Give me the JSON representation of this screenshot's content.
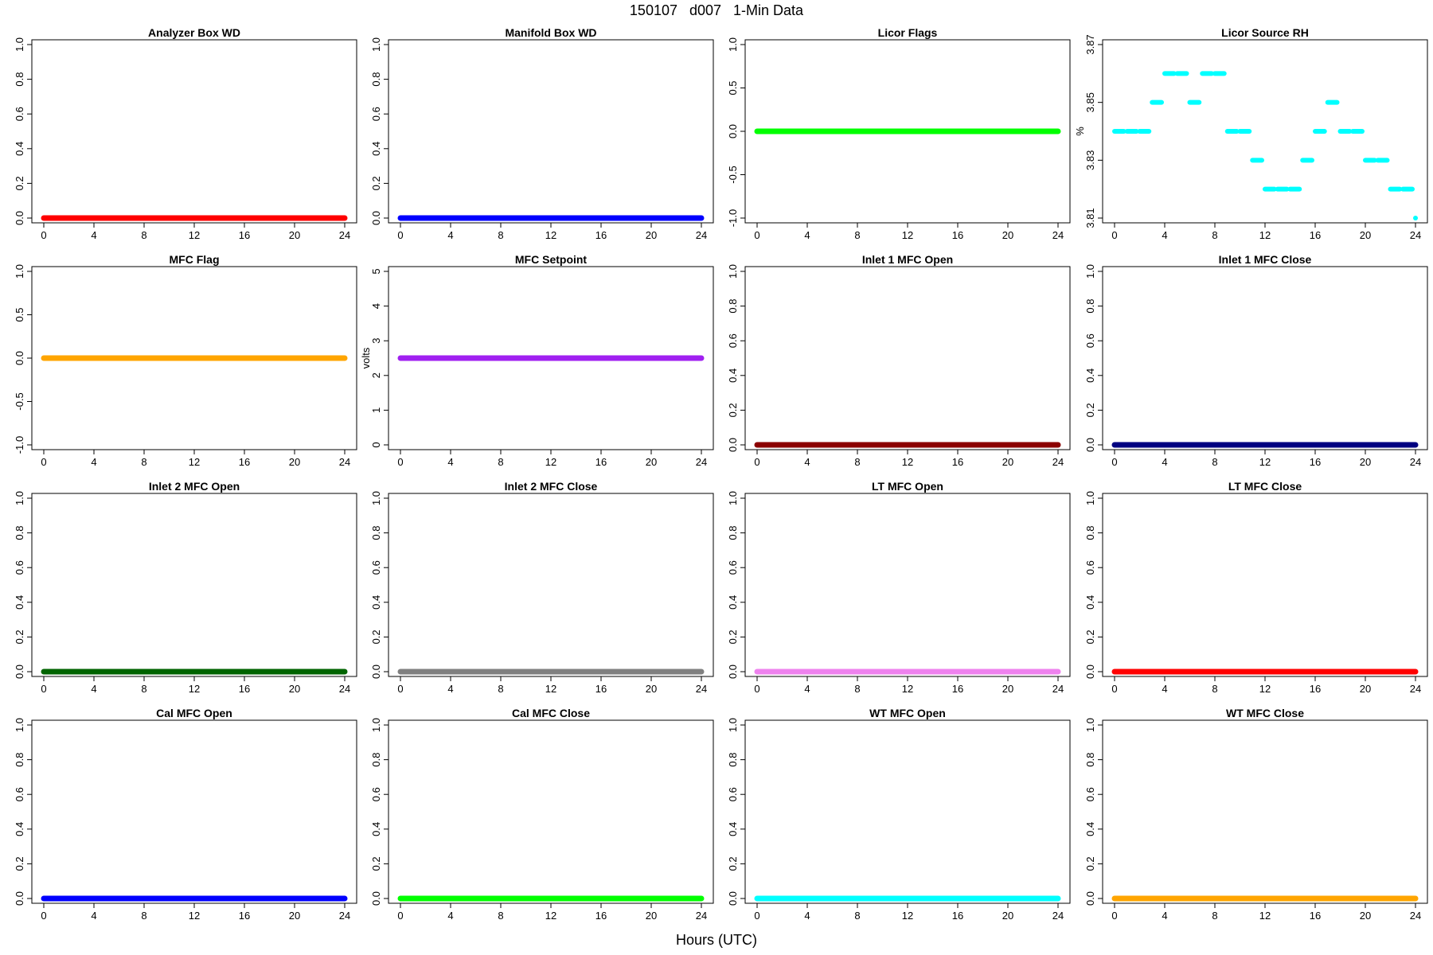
{
  "header": {
    "title": "150107   d007   1-Min Data",
    "xlabel": "Hours (UTC)"
  },
  "chart_data": [
    {
      "type": "scatter",
      "title": "Analyzer Box WD",
      "ylabel": "",
      "color": "#ff0000",
      "xlim": [
        0,
        24
      ],
      "ylim": [
        0,
        1
      ],
      "xticks": [
        "0",
        "4",
        "8",
        "12",
        "16",
        "20",
        "24"
      ],
      "yticks": [
        "0.0",
        "0.2",
        "0.4",
        "0.6",
        "0.8",
        "1.0"
      ],
      "series": [
        {
          "x": [
            0,
            24
          ],
          "y": [
            0,
            0
          ]
        }
      ]
    },
    {
      "type": "scatter",
      "title": "Manifold Box WD",
      "ylabel": "",
      "color": "#0000ff",
      "xlim": [
        0,
        24
      ],
      "ylim": [
        0,
        1
      ],
      "xticks": [
        "0",
        "4",
        "8",
        "12",
        "16",
        "20",
        "24"
      ],
      "yticks": [
        "0.0",
        "0.2",
        "0.4",
        "0.6",
        "0.8",
        "1.0"
      ],
      "series": [
        {
          "x": [
            0,
            24
          ],
          "y": [
            0,
            0
          ]
        }
      ]
    },
    {
      "type": "scatter",
      "title": "Licor Flags",
      "ylabel": "",
      "color": "#00ff00",
      "xlim": [
        0,
        24
      ],
      "ylim": [
        -1,
        1
      ],
      "xticks": [
        "0",
        "4",
        "8",
        "12",
        "16",
        "20",
        "24"
      ],
      "yticks": [
        "-1.0",
        "-0.5",
        "0.0",
        "0.5",
        "1.0"
      ],
      "series": [
        {
          "x": [
            0,
            24
          ],
          "y": [
            0,
            0
          ]
        }
      ]
    },
    {
      "type": "scatter",
      "title": "Licor Source RH",
      "ylabel": "%",
      "color": "#00ffff",
      "xlim": [
        0,
        24
      ],
      "ylim": [
        3.81,
        3.87
      ],
      "xticks": [
        "0",
        "4",
        "8",
        "12",
        "16",
        "20",
        "24"
      ],
      "yticks": [
        "3.81",
        "3.83",
        "3.85",
        "3.87"
      ],
      "series": [
        {
          "x": [
            0,
            1,
            2,
            3,
            4,
            5,
            6,
            7,
            8,
            9,
            10,
            11,
            12,
            13,
            14,
            15,
            16,
            17,
            18,
            19,
            20,
            21,
            22,
            23,
            24
          ],
          "y": [
            3.84,
            3.84,
            3.84,
            3.85,
            3.86,
            3.86,
            3.85,
            3.86,
            3.86,
            3.84,
            3.84,
            3.83,
            3.82,
            3.82,
            3.82,
            3.83,
            3.84,
            3.85,
            3.84,
            3.84,
            3.83,
            3.83,
            3.82,
            3.82,
            3.81
          ]
        }
      ]
    },
    {
      "type": "scatter",
      "title": "MFC Flag",
      "ylabel": "",
      "color": "#ffa500",
      "xlim": [
        0,
        24
      ],
      "ylim": [
        -1,
        1
      ],
      "xticks": [
        "0",
        "4",
        "8",
        "12",
        "16",
        "20",
        "24"
      ],
      "yticks": [
        "-1.0",
        "-0.5",
        "0.0",
        "0.5",
        "1.0"
      ],
      "series": [
        {
          "x": [
            0,
            24
          ],
          "y": [
            0,
            0
          ]
        }
      ]
    },
    {
      "type": "scatter",
      "title": "MFC Setpoint",
      "ylabel": "volts",
      "color": "#a020f0",
      "xlim": [
        0,
        24
      ],
      "ylim": [
        0,
        5
      ],
      "xticks": [
        "0",
        "4",
        "8",
        "12",
        "16",
        "20",
        "24"
      ],
      "yticks": [
        "0",
        "1",
        "2",
        "3",
        "4",
        "5"
      ],
      "series": [
        {
          "x": [
            0,
            24
          ],
          "y": [
            2.5,
            2.5
          ]
        }
      ]
    },
    {
      "type": "scatter",
      "title": "Inlet 1 MFC Open",
      "ylabel": "",
      "color": "#8b0000",
      "xlim": [
        0,
        24
      ],
      "ylim": [
        0,
        1
      ],
      "xticks": [
        "0",
        "4",
        "8",
        "12",
        "16",
        "20",
        "24"
      ],
      "yticks": [
        "0.0",
        "0.2",
        "0.4",
        "0.6",
        "0.8",
        "1.0"
      ],
      "series": [
        {
          "x": [
            0,
            24
          ],
          "y": [
            0,
            0
          ]
        }
      ]
    },
    {
      "type": "scatter",
      "title": "Inlet 1 MFC Close",
      "ylabel": "",
      "color": "#000080",
      "xlim": [
        0,
        24
      ],
      "ylim": [
        0,
        1
      ],
      "xticks": [
        "0",
        "4",
        "8",
        "12",
        "16",
        "20",
        "24"
      ],
      "yticks": [
        "0.0",
        "0.2",
        "0.4",
        "0.6",
        "0.8",
        "1.0"
      ],
      "series": [
        {
          "x": [
            0,
            24
          ],
          "y": [
            0,
            0
          ]
        }
      ]
    },
    {
      "type": "scatter",
      "title": "Inlet 2 MFC Open",
      "ylabel": "",
      "color": "#006400",
      "xlim": [
        0,
        24
      ],
      "ylim": [
        0,
        1
      ],
      "xticks": [
        "0",
        "4",
        "8",
        "12",
        "16",
        "20",
        "24"
      ],
      "yticks": [
        "0.0",
        "0.2",
        "0.4",
        "0.6",
        "0.8",
        "1.0"
      ],
      "series": [
        {
          "x": [
            0,
            24
          ],
          "y": [
            0,
            0
          ]
        }
      ]
    },
    {
      "type": "scatter",
      "title": "Inlet 2 MFC Close",
      "ylabel": "",
      "color": "#808080",
      "xlim": [
        0,
        24
      ],
      "ylim": [
        0,
        1
      ],
      "xticks": [
        "0",
        "4",
        "8",
        "12",
        "16",
        "20",
        "24"
      ],
      "yticks": [
        "0.0",
        "0.2",
        "0.4",
        "0.6",
        "0.8",
        "1.0"
      ],
      "series": [
        {
          "x": [
            0,
            24
          ],
          "y": [
            0,
            0
          ]
        }
      ]
    },
    {
      "type": "scatter",
      "title": "LT MFC Open",
      "ylabel": "",
      "color": "#ee82ee",
      "xlim": [
        0,
        24
      ],
      "ylim": [
        0,
        1
      ],
      "xticks": [
        "0",
        "4",
        "8",
        "12",
        "16",
        "20",
        "24"
      ],
      "yticks": [
        "0.0",
        "0.2",
        "0.4",
        "0.6",
        "0.8",
        "1.0"
      ],
      "series": [
        {
          "x": [
            0,
            24
          ],
          "y": [
            0,
            0
          ]
        }
      ]
    },
    {
      "type": "scatter",
      "title": "LT MFC Close",
      "ylabel": "",
      "color": "#ff0000",
      "xlim": [
        0,
        24
      ],
      "ylim": [
        0,
        1
      ],
      "xticks": [
        "0",
        "4",
        "8",
        "12",
        "16",
        "20",
        "24"
      ],
      "yticks": [
        "0.0",
        "0.2",
        "0.4",
        "0.6",
        "0.8",
        "1.0"
      ],
      "series": [
        {
          "x": [
            0,
            24
          ],
          "y": [
            0,
            0
          ]
        }
      ]
    },
    {
      "type": "scatter",
      "title": "Cal MFC Open",
      "ylabel": "",
      "color": "#0000ff",
      "xlim": [
        0,
        24
      ],
      "ylim": [
        0,
        1
      ],
      "xticks": [
        "0",
        "4",
        "8",
        "12",
        "16",
        "20",
        "24"
      ],
      "yticks": [
        "0.0",
        "0.2",
        "0.4",
        "0.6",
        "0.8",
        "1.0"
      ],
      "series": [
        {
          "x": [
            0,
            24
          ],
          "y": [
            0,
            0
          ]
        }
      ]
    },
    {
      "type": "scatter",
      "title": "Cal MFC Close",
      "ylabel": "",
      "color": "#00ff00",
      "xlim": [
        0,
        24
      ],
      "ylim": [
        0,
        1
      ],
      "xticks": [
        "0",
        "4",
        "8",
        "12",
        "16",
        "20",
        "24"
      ],
      "yticks": [
        "0.0",
        "0.2",
        "0.4",
        "0.6",
        "0.8",
        "1.0"
      ],
      "series": [
        {
          "x": [
            0,
            24
          ],
          "y": [
            0,
            0
          ]
        }
      ]
    },
    {
      "type": "scatter",
      "title": "WT MFC Open",
      "ylabel": "",
      "color": "#00ffff",
      "xlim": [
        0,
        24
      ],
      "ylim": [
        0,
        1
      ],
      "xticks": [
        "0",
        "4",
        "8",
        "12",
        "16",
        "20",
        "24"
      ],
      "yticks": [
        "0.0",
        "0.2",
        "0.4",
        "0.6",
        "0.8",
        "1.0"
      ],
      "series": [
        {
          "x": [
            0,
            24
          ],
          "y": [
            0,
            0
          ]
        }
      ]
    },
    {
      "type": "scatter",
      "title": "WT MFC Close",
      "ylabel": "",
      "color": "#ffa500",
      "xlim": [
        0,
        24
      ],
      "ylim": [
        0,
        1
      ],
      "xticks": [
        "0",
        "4",
        "8",
        "12",
        "16",
        "20",
        "24"
      ],
      "yticks": [
        "0.0",
        "0.2",
        "0.4",
        "0.6",
        "0.8",
        "1.0"
      ],
      "series": [
        {
          "x": [
            0,
            24
          ],
          "y": [
            0,
            0
          ]
        }
      ]
    }
  ]
}
